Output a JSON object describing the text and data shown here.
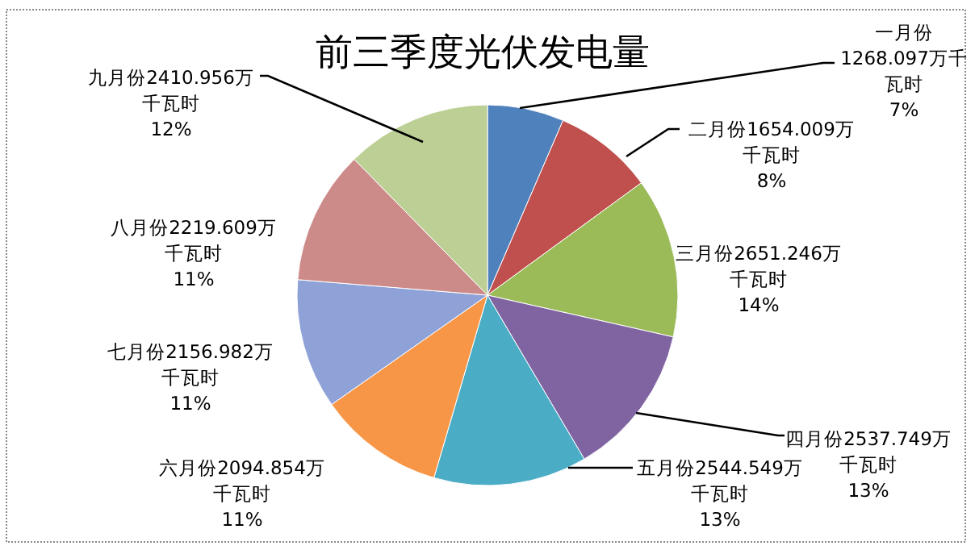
{
  "chart_data": {
    "type": "pie",
    "title": "前三季度光伏发电量",
    "categories": [
      "一月份",
      "二月份",
      "三月份",
      "四月份",
      "五月份",
      "六月份",
      "七月份",
      "八月份",
      "九月份"
    ],
    "values": [
      1268.097,
      1654.009,
      2651.246,
      2537.749,
      2544.549,
      2094.854,
      2156.982,
      2219.609,
      2410.956
    ],
    "colors": [
      "#4f81bd",
      "#c0504d",
      "#9bbb59",
      "#8064a2",
      "#4bacc6",
      "#f79646",
      "#8fa2d8",
      "#cc8b89",
      "#bccf94"
    ],
    "value_labels": [
      "1268.097万千瓦时7%",
      "1654.009万千瓦时8%",
      "2651.246万千瓦时14%",
      "2537.749万千瓦时13%",
      "2544.549万千瓦时13%",
      "2094.854万千瓦时11%",
      "2156.982万千瓦时11%",
      "2219.609万千瓦时11%",
      "2410.956万千瓦时12%"
    ]
  }
}
